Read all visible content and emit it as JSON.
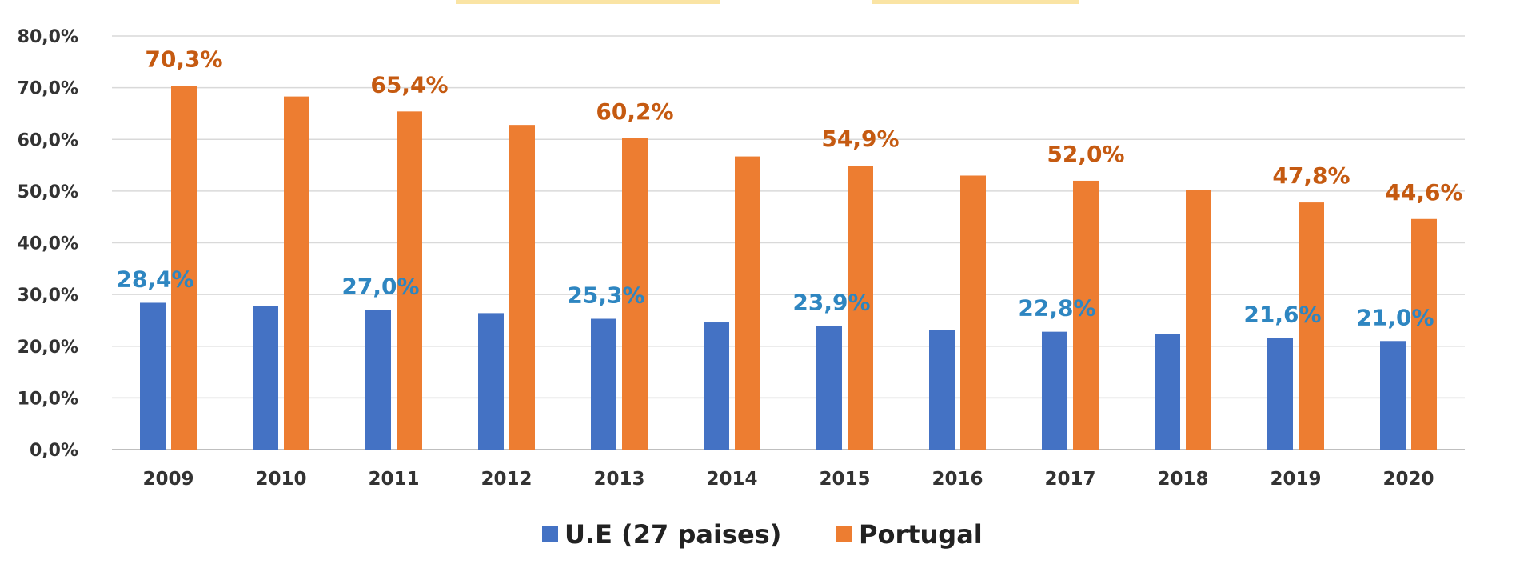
{
  "chart_data": {
    "type": "bar",
    "categories": [
      "2009",
      "2010",
      "2011",
      "2012",
      "2013",
      "2014",
      "2015",
      "2016",
      "2017",
      "2018",
      "2019",
      "2020"
    ],
    "series": [
      {
        "name": "U.E (27 paises)",
        "color": "#4472c4",
        "label_color": "#2e86c1",
        "values": [
          28.4,
          27.8,
          27.0,
          26.4,
          25.3,
          24.6,
          23.9,
          23.2,
          22.8,
          22.3,
          21.6,
          21.0
        ],
        "labels": [
          "28,4%",
          "",
          "27,0%",
          "",
          "25,3%",
          "",
          "23,9%",
          "",
          "22,8%",
          "",
          "21,6%",
          "21,0%"
        ]
      },
      {
        "name": "Portugal",
        "color": "#ed7d31",
        "label_color": "#c55a11",
        "values": [
          70.3,
          68.3,
          65.4,
          62.8,
          60.2,
          56.7,
          54.9,
          53.0,
          52.0,
          50.2,
          47.8,
          44.6
        ],
        "labels": [
          "70,3%",
          "",
          "65,4%",
          "",
          "60,2%",
          "",
          "54,9%",
          "",
          "52,0%",
          "",
          "47,8%",
          "44,6%"
        ]
      }
    ],
    "y_ticks": [
      "0,0%",
      "10,0%",
      "20,0%",
      "30,0%",
      "40,0%",
      "50,0%",
      "60,0%",
      "70,0%",
      "80,0%"
    ],
    "ylim": [
      0,
      80
    ],
    "grid": true,
    "legend_position": "bottom",
    "title": "",
    "xlabel": "",
    "ylabel": ""
  }
}
